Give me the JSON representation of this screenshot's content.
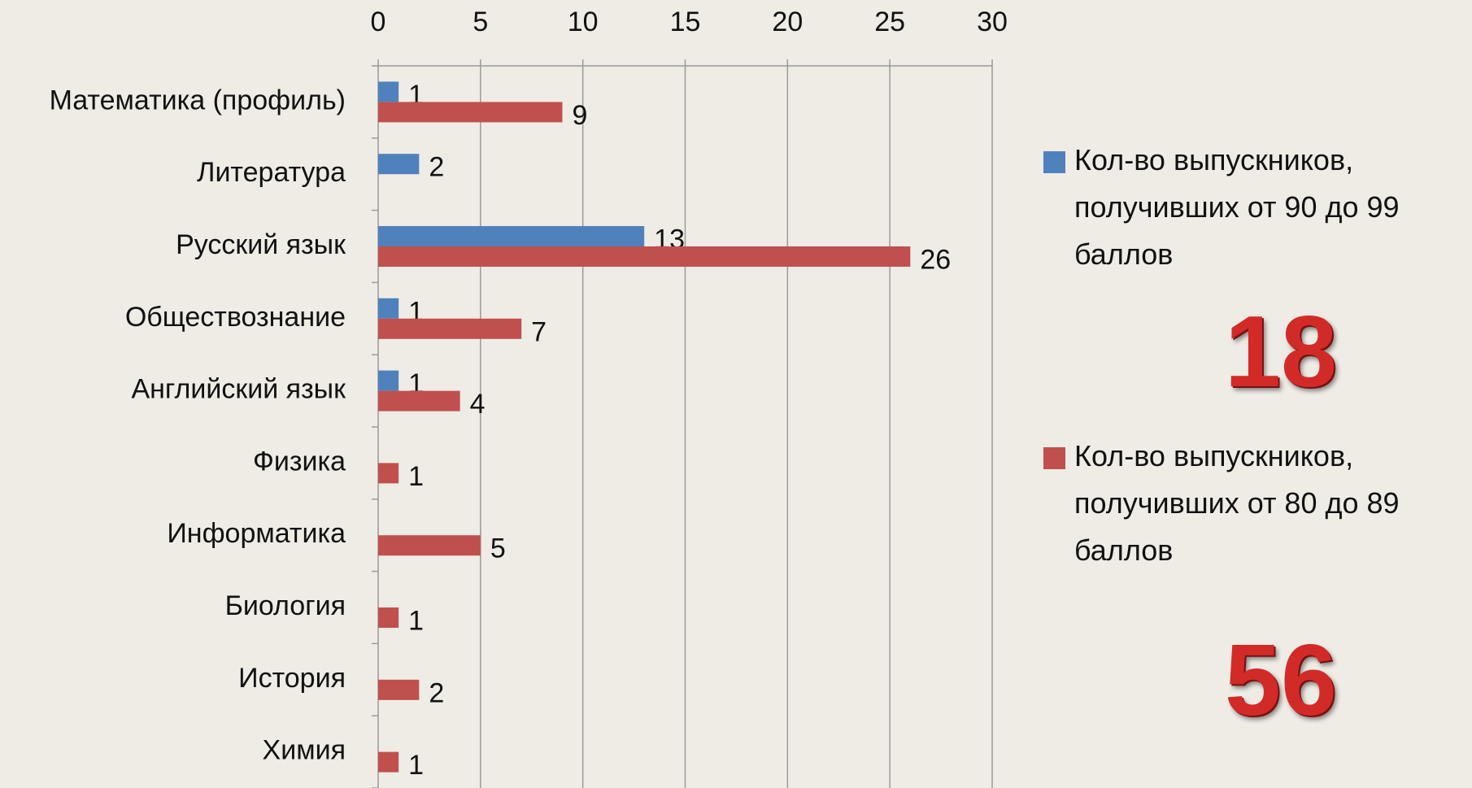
{
  "chart_data": {
    "type": "bar",
    "orientation": "horizontal",
    "categories": [
      "Математика (профиль)",
      "Литература",
      "Русский язык",
      "Обществознание",
      "Английский язык",
      "Физика",
      "Информатика",
      "Биология",
      "История",
      "Химия"
    ],
    "series": [
      {
        "name": "Кол-во выпускников, получивших от 90 до 99 баллов",
        "color": "#4f81bd",
        "values": [
          1,
          2,
          13,
          1,
          1,
          null,
          null,
          null,
          null,
          null
        ],
        "total": 18
      },
      {
        "name": "Кол-во выпускников, получивших от 80 до 89 баллов",
        "color": "#c0504d",
        "values": [
          9,
          null,
          26,
          7,
          4,
          1,
          5,
          1,
          2,
          1
        ],
        "total": 56
      }
    ],
    "xlim": [
      0,
      30
    ],
    "xticks": [
      0,
      5,
      10,
      15,
      20,
      25,
      30
    ],
    "grid": true,
    "legend": "right"
  }
}
